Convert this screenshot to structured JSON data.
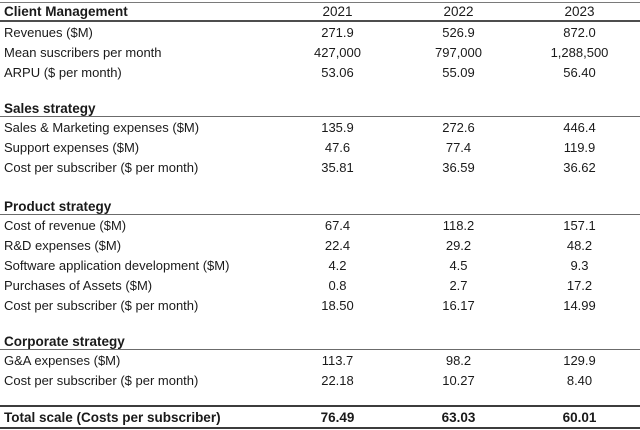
{
  "table": {
    "header": {
      "title": "Client Management",
      "columns": [
        "2021",
        "2022",
        "2023"
      ]
    },
    "client_management": {
      "rows": [
        {
          "label": "Revenues ($M)",
          "values": [
            "271.9",
            "526.9",
            "872.0"
          ]
        },
        {
          "label": "Mean suscribers per month",
          "values": [
            "427,000",
            "797,000",
            "1,288,500"
          ]
        },
        {
          "label": "ARPU ($ per month)",
          "values": [
            "53.06",
            "55.09",
            "56.40"
          ]
        }
      ]
    },
    "sales_strategy": {
      "title": "Sales strategy",
      "rows": [
        {
          "label": "Sales & Marketing expenses ($M)",
          "values": [
            "135.9",
            "272.6",
            "446.4"
          ]
        },
        {
          "label": "Support expenses ($M)",
          "values": [
            "47.6",
            "77.4",
            "119.9"
          ]
        },
        {
          "label": "Cost per subscriber ($ per month)",
          "values": [
            "35.81",
            "36.59",
            "36.62"
          ]
        }
      ]
    },
    "product_strategy": {
      "title": "Product strategy",
      "rows": [
        {
          "label": "Cost of revenue ($M)",
          "values": [
            "67.4",
            "118.2",
            "157.1"
          ]
        },
        {
          "label": "R&D expenses ($M)",
          "values": [
            "22.4",
            "29.2",
            "48.2"
          ]
        },
        {
          "label": "Software application development ($M)",
          "values": [
            "4.2",
            "4.5",
            "9.3"
          ]
        },
        {
          "label": "Purchases of Assets ($M)",
          "values": [
            "0.8",
            "2.7",
            "17.2"
          ]
        },
        {
          "label": "Cost per subscriber ($ per month)",
          "values": [
            "18.50",
            "16.17",
            "14.99"
          ]
        }
      ]
    },
    "corporate_strategy": {
      "title": "Corporate strategy",
      "rows": [
        {
          "label": "G&A expenses ($M)",
          "values": [
            "113.7",
            "98.2",
            "129.9"
          ]
        },
        {
          "label": "Cost per subscriber ($ per month)",
          "values": [
            "22.18",
            "10.27",
            "8.40"
          ]
        }
      ]
    },
    "total": {
      "label": "Total scale (Costs per subscriber)",
      "values": [
        "76.49",
        "63.03",
        "60.01"
      ]
    }
  }
}
